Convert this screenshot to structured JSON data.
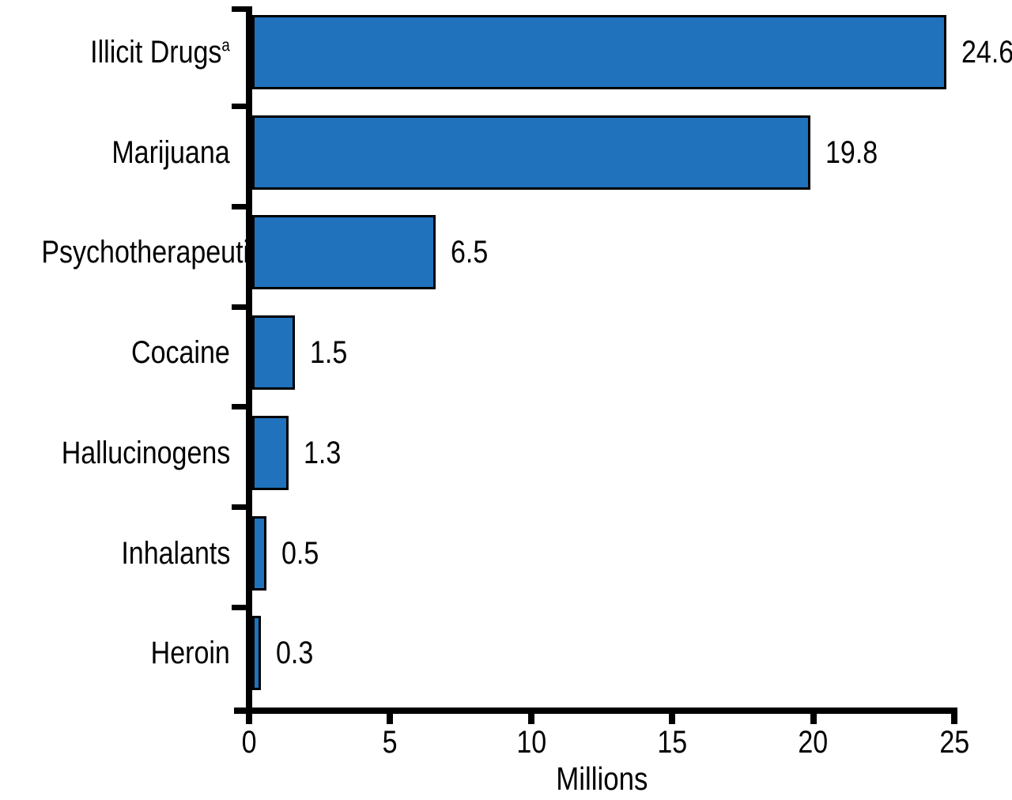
{
  "chart_data": {
    "type": "bar",
    "orientation": "horizontal",
    "title": "",
    "categories": [
      "Illicit Drugs",
      "Marijuana",
      "Psychotherapeutics",
      "Cocaine",
      "Hallucinogens",
      "Inhalants",
      "Heroin"
    ],
    "category_superscripts": [
      "a",
      "",
      "",
      "",
      "",
      "",
      ""
    ],
    "values": [
      24.6,
      19.8,
      6.5,
      1.5,
      1.3,
      0.5,
      0.3
    ],
    "value_labels": [
      "24.6",
      "19.8",
      "6.5",
      "1.5",
      "1.3",
      "0.5",
      "0.3"
    ],
    "xlabel": "Millions",
    "ylabel": "",
    "xlim": [
      0,
      25
    ],
    "x_ticks": [
      0,
      5,
      10,
      15,
      20,
      25
    ],
    "grid": false,
    "bar_color": "#2072BC",
    "bar_border_color": "#000000",
    "axis_color": "#000000",
    "text_color": "#000000"
  }
}
